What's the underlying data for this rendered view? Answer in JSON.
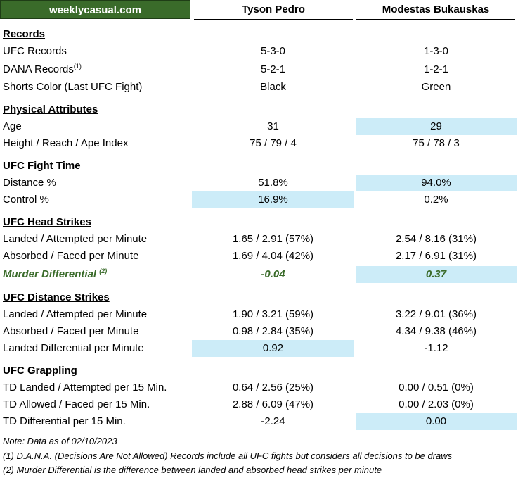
{
  "brand": "weeklycasual.com",
  "headers": {
    "fighter1": "Tyson Pedro",
    "fighter2": "Modestas Bukauskas"
  },
  "records": {
    "title": "Records",
    "ufc": {
      "label": "UFC Records",
      "f1": "5-3-0",
      "f2": "1-3-0"
    },
    "dana": {
      "label": "DANA Records",
      "sup": "(1)",
      "f1": "5-2-1",
      "f2": "1-2-1"
    },
    "shorts": {
      "label": "Shorts Color (Last UFC Fight)",
      "f1": "Black",
      "f2": "Green"
    }
  },
  "physical": {
    "title": "Physical Attributes",
    "age": {
      "label": "Age",
      "f1": "31",
      "f2": "29"
    },
    "hra": {
      "label": "Height / Reach / Ape Index",
      "f1": "75 / 79 / 4",
      "f2": "75 / 78 / 3"
    }
  },
  "fight_time": {
    "title": "UFC Fight Time",
    "distance": {
      "label": "Distance %",
      "f1": "51.8%",
      "f2": "94.0%"
    },
    "control": {
      "label": "Control %",
      "f1": "16.9%",
      "f2": "0.2%"
    }
  },
  "head": {
    "title": "UFC Head Strikes",
    "landed": {
      "label": "Landed / Attempted per Minute",
      "f1": "1.65 / 2.91 (57%)",
      "f2": "2.54 / 8.16 (31%)"
    },
    "absorbed": {
      "label": "Absorbed / Faced per Minute",
      "f1": "1.69 / 4.04 (42%)",
      "f2": "2.17 / 6.91 (31%)"
    },
    "murder": {
      "label": "Murder Differential",
      "sup": "(2)",
      "f1": "-0.04",
      "f2": "0.37"
    }
  },
  "distance_strikes": {
    "title": "UFC Distance Strikes",
    "landed": {
      "label": "Landed / Attempted per Minute",
      "f1": "1.90 / 3.21 (59%)",
      "f2": "3.22 / 9.01 (36%)"
    },
    "absorbed": {
      "label": "Absorbed / Faced per Minute",
      "f1": "0.98 / 2.84 (35%)",
      "f2": "4.34 / 9.38 (46%)"
    },
    "diff": {
      "label": "Landed Differential per Minute",
      "f1": "0.92",
      "f2": "-1.12"
    }
  },
  "grappling": {
    "title": "UFC Grappling",
    "td_landed": {
      "label": "TD Landed / Attempted per 15 Min.",
      "f1": "0.64 / 2.56 (25%)",
      "f2": "0.00 / 0.51 (0%)"
    },
    "td_allowed": {
      "label": "TD Allowed / Faced per 15 Min.",
      "f1": "2.88 / 6.09 (47%)",
      "f2": "0.00 / 2.03 (0%)"
    },
    "td_diff": {
      "label": "TD Differential per 15 Min.",
      "f1": "-2.24",
      "f2": "0.00"
    }
  },
  "notes": {
    "date": "Note: Data as of 02/10/2023",
    "n1": "(1) D.A.N.A. (Decisions Are Not Allowed) Records include all UFC fights but considers all decisions to be draws",
    "n2": "(2) Murder Differential is the difference between landed and absorbed head strikes per minute"
  },
  "colors": {
    "brand_green": "#3a6b2a",
    "highlight": "#ccecf8"
  }
}
